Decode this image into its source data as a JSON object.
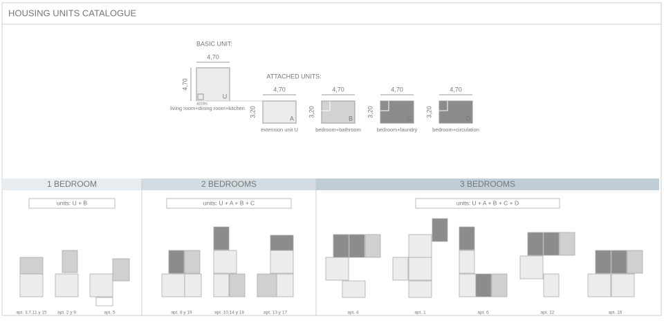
{
  "header": {
    "title": "HOUSING UNITS CATALOGUE"
  },
  "basic_unit": {
    "heading": "BASIC UNIT:",
    "width": "4,70",
    "depth": "4,70",
    "letter": "U",
    "access": "acces",
    "caption": "living room+dining room+kitchen"
  },
  "attached_units": {
    "heading": "ATTACHED UNITS:",
    "units": [
      {
        "width": "4,70",
        "depth": "3,20",
        "letter": "A",
        "caption": "extension unit U"
      },
      {
        "width": "4,70",
        "depth": "3,20",
        "letter": "B",
        "caption": "bedroom+bathroom"
      },
      {
        "width": "4,70",
        "depth": "3,20",
        "letter": "C",
        "caption": "bedroom+laundry"
      },
      {
        "width": "4,70",
        "depth": "3,20",
        "letter": "D",
        "caption": "bedroom+circulation"
      }
    ]
  },
  "groups": [
    {
      "title": "1 BEDROOM",
      "units": "units: U + B",
      "apartments": [
        "apt. 3,7,11 y 15",
        "apt. 2 y 9",
        "apt. 5"
      ]
    },
    {
      "title": "2 BEDROOMS",
      "units": "units: U + A + B + C",
      "apartments": [
        "apt. 8 y 19",
        "apt. 10,14 y 18",
        "apt. 13 y 17"
      ]
    },
    {
      "title": "3 BEDROOMS",
      "units": "units: U + A + B + C + D",
      "apartments": [
        "apt. 4",
        "apt. 1",
        "apt. 6",
        "apt. 12",
        "apt. 16"
      ]
    }
  ]
}
